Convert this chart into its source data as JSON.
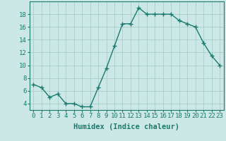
{
  "x": [
    0,
    1,
    2,
    3,
    4,
    5,
    6,
    7,
    8,
    9,
    10,
    11,
    12,
    13,
    14,
    15,
    16,
    17,
    18,
    19,
    20,
    21,
    22,
    23
  ],
  "y": [
    7,
    6.5,
    5,
    5.5,
    4,
    4,
    3.5,
    3.5,
    6.5,
    9.5,
    13,
    16.5,
    16.5,
    19,
    18,
    18,
    18,
    18,
    17,
    16.5,
    16,
    13.5,
    11.5,
    10
  ],
  "line_color": "#1a7a6e",
  "marker": "+",
  "marker_size": 4,
  "linewidth": 1.0,
  "bg_color": "#cce8e6",
  "grid_color": "#a8ceca",
  "xlabel": "Humidex (Indice chaleur)",
  "xlim": [
    -0.5,
    23.5
  ],
  "ylim": [
    3,
    20
  ],
  "yticks": [
    4,
    6,
    8,
    10,
    12,
    14,
    16,
    18
  ],
  "xticks": [
    0,
    1,
    2,
    3,
    4,
    5,
    6,
    7,
    8,
    9,
    10,
    11,
    12,
    13,
    14,
    15,
    16,
    17,
    18,
    19,
    20,
    21,
    22,
    23
  ],
  "xlabel_fontsize": 7.5,
  "tick_fontsize": 6.5
}
